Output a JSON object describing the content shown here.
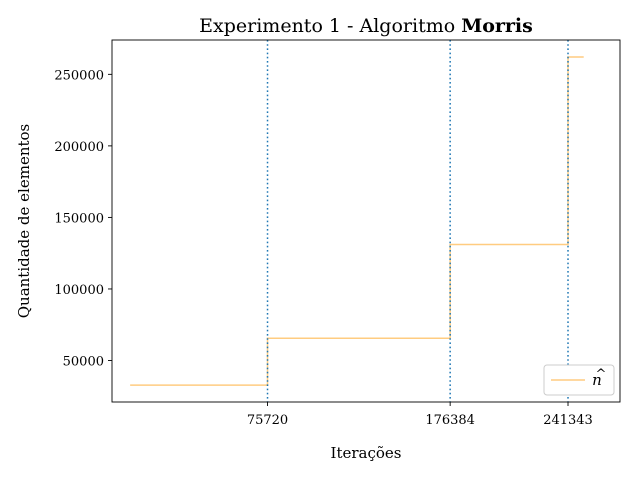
{
  "chart_data": {
    "type": "line",
    "title": "Experimento 1 - Algoritmo ",
    "title_bold": "Morris",
    "xlabel": "Iterações",
    "ylabel": "Quantidade de elementos",
    "xlim": [
      -10000,
      270000
    ],
    "ylim": [
      21000,
      274000
    ],
    "xticks": [
      75720,
      176384,
      241343
    ],
    "xtick_labels": [
      "75720",
      "176384",
      "241343"
    ],
    "yticks": [
      50000,
      100000,
      150000,
      200000,
      250000
    ],
    "ytick_labels": [
      "50000",
      "100000",
      "150000",
      "200000",
      "250000"
    ],
    "vlines": [
      75720,
      176384,
      241343
    ],
    "vline_color": "#1f77b4",
    "series": [
      {
        "name": "n̂",
        "color": "#ffcc80",
        "x": [
          0,
          75720,
          75720,
          176384,
          176384,
          241343,
          241343,
          250000
        ],
        "y": [
          32768,
          32768,
          65536,
          65536,
          131072,
          131072,
          262144,
          262144
        ]
      }
    ],
    "legend": {
      "placement": "bottom-right",
      "label_base": "n",
      "label_accent": "^"
    },
    "grid": false
  }
}
